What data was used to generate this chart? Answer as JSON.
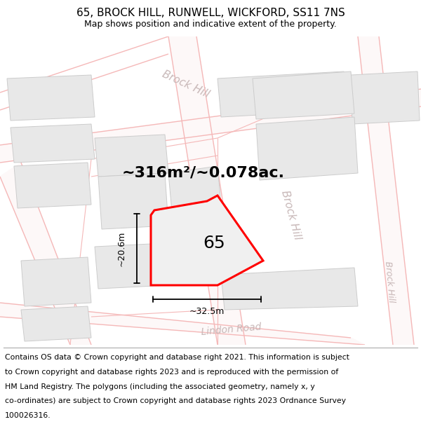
{
  "title": "65, BROCK HILL, RUNWELL, WICKFORD, SS11 7NS",
  "subtitle": "Map shows position and indicative extent of the property.",
  "area_text": "~316m²/~0.078ac.",
  "label_65": "65",
  "dim_width": "~32.5m",
  "dim_height": "~20.6m",
  "footer_lines": [
    "Contains OS data © Crown copyright and database right 2021. This information is subject",
    "to Crown copyright and database rights 2023 and is reproduced with the permission of",
    "HM Land Registry. The polygons (including the associated geometry, namely x, y",
    "co-ordinates) are subject to Crown copyright and database rights 2023 Ordnance Survey",
    "100026316."
  ],
  "map_bg": "#ffffff",
  "road_line_color": "#f5b8b8",
  "road_line_color2": "#e8a8a8",
  "building_fill": "#e8e8e8",
  "building_edge": "#cccccc",
  "plot_fill": "#f0f0f0",
  "plot_edge": "#ff0000",
  "road_label_color": "#c8b8b8",
  "title_fontsize": 11,
  "subtitle_fontsize": 9,
  "area_fontsize": 16,
  "label_fontsize": 18,
  "footer_fontsize": 7.8,
  "road_label_fontsize": 11,
  "dim_fontsize": 9
}
